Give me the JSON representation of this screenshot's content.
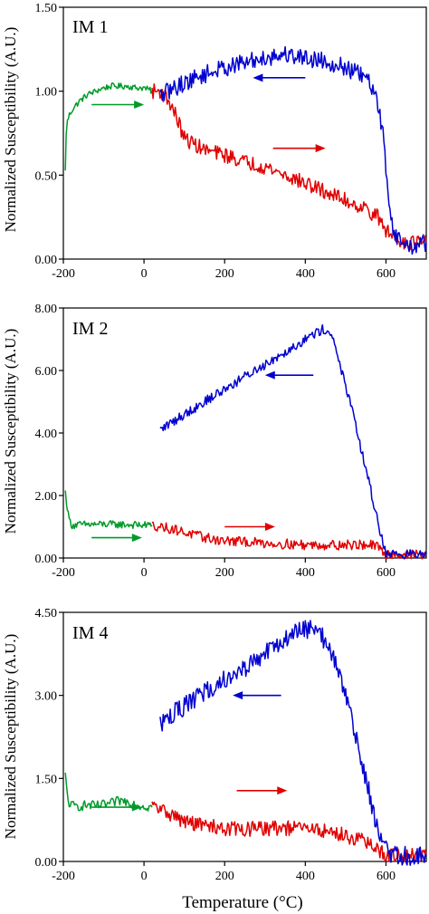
{
  "figure": {
    "xlabel": "Temperature (°C)",
    "colors": {
      "heating": "#e00000",
      "cooling": "#0000d0",
      "low_temp": "#009a2a",
      "axis": "#000000"
    }
  },
  "chart_data": [
    {
      "type": "line",
      "panel_label": "IM 1",
      "title": "",
      "xlabel": "Temperature (°C)",
      "ylabel": "Normalized Susceptibility (A.U.)",
      "xlim": [
        -200,
        700
      ],
      "ylim": [
        0,
        1.5
      ],
      "xticks": [
        -200,
        0,
        200,
        400,
        600
      ],
      "xtick_labels": [
        "-200",
        "0",
        "200",
        "400",
        "600"
      ],
      "yticks": [
        0,
        0.5,
        1.0,
        1.5
      ],
      "ytick_labels": [
        "0.00",
        "0.50",
        "1.00",
        "1.50"
      ],
      "grid": false,
      "series": [
        {
          "color": "#009a2a",
          "noise": 0.012,
          "x": [
            -195,
            -193,
            -190,
            -185,
            -175,
            -160,
            -140,
            -120,
            -100,
            -80,
            -60,
            -40,
            -20,
            0,
            10,
            20
          ],
          "y": [
            0.52,
            0.75,
            0.82,
            0.86,
            0.9,
            0.94,
            0.98,
            1.0,
            1.02,
            1.03,
            1.03,
            1.03,
            1.02,
            1.02,
            1.01,
            1.0
          ]
        },
        {
          "color": "#e00000",
          "noise": 0.03,
          "x": [
            20,
            40,
            60,
            80,
            100,
            150,
            200,
            250,
            300,
            350,
            400,
            450,
            500,
            550,
            580,
            600,
            620,
            650,
            700
          ],
          "y": [
            1.0,
            1.0,
            0.95,
            0.85,
            0.72,
            0.65,
            0.62,
            0.58,
            0.55,
            0.5,
            0.45,
            0.4,
            0.35,
            0.3,
            0.25,
            0.17,
            0.13,
            0.1,
            0.1
          ]
        },
        {
          "color": "#0000d0",
          "noise": 0.035,
          "x": [
            40,
            60,
            100,
            150,
            200,
            250,
            300,
            350,
            400,
            450,
            500,
            550,
            570,
            590,
            600,
            610,
            620,
            640,
            660,
            700
          ],
          "y": [
            0.97,
            1.0,
            1.05,
            1.1,
            1.14,
            1.17,
            1.2,
            1.22,
            1.2,
            1.18,
            1.14,
            1.08,
            1.0,
            0.8,
            0.55,
            0.3,
            0.15,
            0.1,
            0.07,
            0.1
          ]
        }
      ],
      "arrows": [
        {
          "color": "#009a2a",
          "direction": "right",
          "y": 0.92,
          "x_from": -130,
          "x_to": 0
        },
        {
          "color": "#0000d0",
          "direction": "left",
          "y": 1.08,
          "x_from": 400,
          "x_to": 270
        },
        {
          "color": "#e00000",
          "direction": "right",
          "y": 0.66,
          "x_from": 320,
          "x_to": 450
        }
      ]
    },
    {
      "type": "line",
      "panel_label": "IM 2",
      "title": "",
      "xlabel": "Temperature (°C)",
      "ylabel": "Normalized Susceptibility (A.U.)",
      "xlim": [
        -200,
        700
      ],
      "ylim": [
        0,
        8
      ],
      "xticks": [
        -200,
        0,
        200,
        400,
        600
      ],
      "xtick_labels": [
        "-200",
        "0",
        "200",
        "400",
        "600"
      ],
      "yticks": [
        0,
        2,
        4,
        6,
        8
      ],
      "ytick_labels": [
        "0.00",
        "2.00",
        "4.00",
        "6.00",
        "8.00"
      ],
      "grid": false,
      "series": [
        {
          "color": "#009a2a",
          "noise": 0.015,
          "x": [
            -195,
            -192,
            -188,
            -183,
            -178,
            -170,
            -150,
            -100,
            -50,
            0,
            20
          ],
          "y": [
            2.1,
            1.8,
            1.4,
            1.15,
            1.05,
            1.05,
            1.07,
            1.08,
            1.07,
            1.05,
            1.05
          ]
        },
        {
          "color": "#e00000",
          "noise": 0.02,
          "x": [
            20,
            50,
            80,
            100,
            150,
            200,
            300,
            400,
            500,
            560,
            580,
            590,
            600,
            650,
            700
          ],
          "y": [
            1.05,
            0.98,
            0.9,
            0.82,
            0.65,
            0.55,
            0.48,
            0.42,
            0.42,
            0.42,
            0.35,
            0.2,
            0.12,
            0.12,
            0.1
          ]
        },
        {
          "color": "#0000d0",
          "noise": 0.02,
          "x": [
            40,
            100,
            200,
            300,
            400,
            440,
            460,
            480,
            520,
            560,
            590,
            600,
            620,
            660,
            700
          ],
          "y": [
            4.1,
            4.6,
            5.4,
            6.2,
            7.0,
            7.3,
            7.3,
            6.5,
            4.5,
            2.3,
            0.6,
            0.18,
            0.12,
            0.12,
            0.1
          ]
        }
      ],
      "arrows": [
        {
          "color": "#009a2a",
          "direction": "right",
          "y": 0.65,
          "x_from": -130,
          "x_to": -5
        },
        {
          "color": "#e00000",
          "direction": "right",
          "y": 1.0,
          "x_from": 200,
          "x_to": 325
        },
        {
          "color": "#0000d0",
          "direction": "left",
          "y": 5.85,
          "x_from": 420,
          "x_to": 300
        }
      ]
    },
    {
      "type": "line",
      "panel_label": "IM 4",
      "title": "",
      "xlabel": "Temperature (°C)",
      "ylabel": "Normalized Susceptibility (A.U.)",
      "xlim": [
        -200,
        700
      ],
      "ylim": [
        0,
        4.5
      ],
      "xticks": [
        -200,
        0,
        200,
        400,
        600
      ],
      "xtick_labels": [
        "-200",
        "0",
        "200",
        "400",
        "600"
      ],
      "yticks": [
        0,
        1.5,
        3.0,
        4.5
      ],
      "ytick_labels": [
        "0.00",
        "1.50",
        "3.00",
        "4.50"
      ],
      "grid": false,
      "series": [
        {
          "color": "#009a2a",
          "noise": 0.02,
          "x": [
            -195,
            -192,
            -188,
            -183,
            -175,
            -160,
            -140,
            -120,
            -100,
            -80,
            -60,
            -40,
            -20,
            0,
            20
          ],
          "y": [
            1.55,
            1.3,
            1.1,
            1.02,
            1.0,
            1.0,
            1.02,
            1.0,
            1.02,
            1.05,
            1.1,
            1.08,
            1.03,
            1.0,
            0.98
          ]
        },
        {
          "color": "#e00000",
          "noise": 0.03,
          "x": [
            20,
            60,
            100,
            150,
            200,
            250,
            300,
            350,
            400,
            450,
            500,
            540,
            560,
            580,
            600,
            650,
            700
          ],
          "y": [
            1.0,
            0.88,
            0.72,
            0.65,
            0.6,
            0.58,
            0.6,
            0.6,
            0.6,
            0.55,
            0.47,
            0.38,
            0.3,
            0.2,
            0.12,
            0.1,
            0.12
          ]
        },
        {
          "color": "#0000d0",
          "noise": 0.04,
          "x": [
            40,
            80,
            120,
            160,
            200,
            250,
            300,
            350,
            380,
            400,
            420,
            440,
            470,
            500,
            530,
            560,
            580,
            600,
            620,
            660,
            700
          ],
          "y": [
            2.5,
            2.7,
            2.9,
            3.1,
            3.3,
            3.5,
            3.75,
            4.0,
            4.15,
            4.2,
            4.2,
            4.1,
            3.7,
            3.0,
            2.1,
            1.2,
            0.55,
            0.2,
            0.12,
            0.1,
            0.1
          ]
        }
      ],
      "arrows": [
        {
          "color": "#009a2a",
          "direction": "right",
          "y": 0.98,
          "x_from": -130,
          "x_to": -5
        },
        {
          "color": "#e00000",
          "direction": "right",
          "y": 1.28,
          "x_from": 230,
          "x_to": 355
        },
        {
          "color": "#0000d0",
          "direction": "left",
          "y": 3.0,
          "x_from": 340,
          "x_to": 220
        }
      ]
    }
  ]
}
